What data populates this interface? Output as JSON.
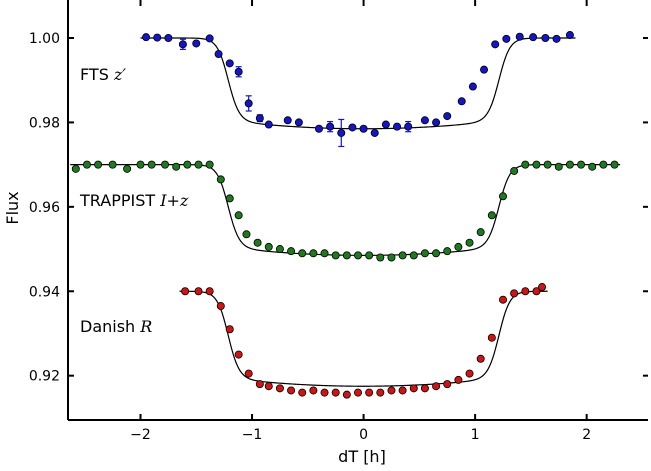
{
  "chart_data": {
    "type": "scatter",
    "xlabel": "dT [h]",
    "ylabel": "Flux",
    "xlim": [
      -2.65,
      2.55
    ],
    "ylim": [
      0.9095,
      1.009
    ],
    "x_ticks": [
      -2,
      -1,
      0,
      1,
      2
    ],
    "x_tick_labels": [
      "−2",
      "−1",
      "0",
      "1",
      "2"
    ],
    "y_ticks": [
      0.92,
      0.94,
      0.96,
      0.98,
      1.0
    ],
    "y_tick_labels": [
      "0.92",
      "0.94",
      "0.96",
      "0.98",
      "1.00"
    ],
    "grid": false,
    "series": [
      {
        "name_plain": "FTS ",
        "name_math": "z′",
        "color": "#1414c8",
        "model": {
          "baseline": 1.0,
          "depth": 0.0215,
          "t1": 1.35,
          "t2": 1.08,
          "curvature": 0.0015
        },
        "x": [
          -1.95,
          -1.85,
          -1.75,
          -1.62,
          -1.5,
          -1.38,
          -1.3,
          -1.2,
          -1.12,
          -1.03,
          -0.93,
          -0.85,
          -0.68,
          -0.58,
          -0.4,
          -0.3,
          -0.2,
          -0.1,
          0.0,
          0.1,
          0.2,
          0.3,
          0.4,
          0.55,
          0.65,
          0.75,
          0.88,
          0.98,
          1.08,
          1.18,
          1.28,
          1.4,
          1.52,
          1.63,
          1.73,
          1.85
        ],
        "y": [
          1.0002,
          1.0001,
          1.0,
          0.9985,
          0.9987,
          0.9999,
          0.9962,
          0.994,
          0.992,
          0.9845,
          0.981,
          0.9795,
          0.9805,
          0.98,
          0.9785,
          0.979,
          0.9775,
          0.9788,
          0.9785,
          0.9775,
          0.9795,
          0.979,
          0.979,
          0.9805,
          0.98,
          0.9815,
          0.985,
          0.9885,
          0.9925,
          0.9985,
          0.9998,
          1.0003,
          1.0002,
          1.0,
          0.9998,
          1.0007
        ],
        "err": [
          0,
          0,
          0,
          0.0012,
          0,
          0,
          0,
          0,
          0.0012,
          0.0018,
          0.0008,
          0,
          0,
          0,
          0,
          0.0012,
          0.0032,
          0,
          0,
          0,
          0,
          0,
          0.0012,
          0,
          0,
          0,
          0,
          0,
          0,
          0,
          0,
          0,
          0,
          0,
          0,
          0
        ]
      },
      {
        "name_plain": "TRAPPIST ",
        "name_math": "I+z",
        "color": "#1f7a1f",
        "model": {
          "baseline": 0.97,
          "depth": 0.0215,
          "t1": 1.35,
          "t2": 1.08,
          "curvature": 0.0015
        },
        "x": [
          -2.58,
          -2.48,
          -2.38,
          -2.25,
          -2.12,
          -2.0,
          -1.9,
          -1.78,
          -1.68,
          -1.58,
          -1.48,
          -1.38,
          -1.28,
          -1.2,
          -1.12,
          -1.05,
          -0.95,
          -0.85,
          -0.75,
          -0.65,
          -0.55,
          -0.45,
          -0.35,
          -0.25,
          -0.15,
          -0.05,
          0.05,
          0.15,
          0.25,
          0.35,
          0.45,
          0.55,
          0.65,
          0.75,
          0.85,
          0.95,
          1.05,
          1.15,
          1.25,
          1.35,
          1.45,
          1.55,
          1.65,
          1.75,
          1.85,
          1.95,
          2.05,
          2.15,
          2.25
        ],
        "y": [
          0.969,
          0.97,
          0.97,
          0.97,
          0.969,
          0.97,
          0.97,
          0.97,
          0.9695,
          0.97,
          0.97,
          0.97,
          0.9665,
          0.962,
          0.958,
          0.9535,
          0.9515,
          0.9505,
          0.95,
          0.9495,
          0.949,
          0.949,
          0.949,
          0.9485,
          0.9485,
          0.9485,
          0.9485,
          0.948,
          0.948,
          0.9485,
          0.9485,
          0.949,
          0.949,
          0.9495,
          0.9505,
          0.9515,
          0.954,
          0.958,
          0.9625,
          0.9685,
          0.97,
          0.97,
          0.97,
          0.9695,
          0.97,
          0.97,
          0.9695,
          0.97,
          0.97
        ],
        "err": []
      },
      {
        "name_plain": "Danish ",
        "name_math": "R",
        "color": "#d01414",
        "model": {
          "baseline": 0.94,
          "depth": 0.0225,
          "t1": 1.35,
          "t2": 1.08,
          "curvature": 0.0015
        },
        "x": [
          -1.6,
          -1.48,
          -1.38,
          -1.28,
          -1.2,
          -1.12,
          -1.03,
          -0.93,
          -0.85,
          -0.75,
          -0.65,
          -0.55,
          -0.45,
          -0.35,
          -0.25,
          -0.15,
          -0.05,
          0.05,
          0.15,
          0.25,
          0.35,
          0.45,
          0.55,
          0.65,
          0.75,
          0.85,
          0.95,
          1.05,
          1.15,
          1.25,
          1.35,
          1.45,
          1.55,
          1.6
        ],
        "y": [
          0.94,
          0.94,
          0.94,
          0.9365,
          0.931,
          0.925,
          0.9205,
          0.918,
          0.9175,
          0.917,
          0.9165,
          0.916,
          0.9165,
          0.916,
          0.916,
          0.9155,
          0.916,
          0.916,
          0.916,
          0.9165,
          0.9165,
          0.917,
          0.917,
          0.9175,
          0.918,
          0.919,
          0.9205,
          0.924,
          0.929,
          0.938,
          0.9395,
          0.94,
          0.94,
          0.941
        ],
        "err": []
      }
    ]
  }
}
